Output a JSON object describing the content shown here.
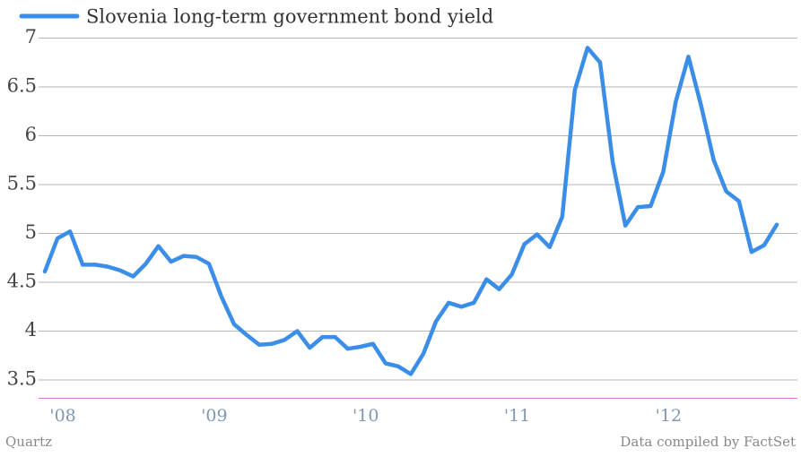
{
  "chart_data": {
    "type": "line",
    "categories": [
      null,
      "'08",
      null,
      null,
      null,
      null,
      null,
      null,
      null,
      null,
      null,
      null,
      null,
      "'09",
      null,
      null,
      null,
      null,
      null,
      null,
      null,
      null,
      null,
      null,
      null,
      "'10",
      null,
      null,
      null,
      null,
      null,
      null,
      null,
      null,
      null,
      null,
      null,
      "'11",
      null,
      null,
      null,
      null,
      null,
      null,
      null,
      null,
      null,
      null,
      null,
      "'12",
      null,
      null,
      null,
      null,
      null,
      null,
      null,
      null,
      null
    ],
    "series": [
      {
        "name": "Slovenia long-term government bond yield",
        "color": "#3b8ee8",
        "values": [
          4.61,
          4.95,
          5.02,
          4.68,
          4.68,
          4.66,
          4.62,
          4.56,
          4.69,
          4.87,
          4.71,
          4.77,
          4.76,
          4.69,
          4.35,
          4.07,
          3.96,
          3.86,
          3.87,
          3.91,
          4.0,
          3.83,
          3.94,
          3.94,
          3.82,
          3.84,
          3.87,
          3.67,
          3.64,
          3.56,
          3.77,
          4.1,
          4.29,
          4.25,
          4.29,
          4.53,
          4.43,
          4.58,
          4.89,
          4.99,
          4.86,
          5.17,
          6.47,
          6.9,
          6.75,
          5.73,
          5.08,
          5.27,
          5.28,
          5.63,
          6.35,
          6.81,
          6.31,
          5.75,
          5.43,
          5.33,
          4.81,
          4.88,
          5.09
        ]
      }
    ],
    "ylim": [
      3.317,
      7.05
    ],
    "yticks": [
      3.5,
      4,
      4.5,
      5,
      5.5,
      6,
      6.5,
      7
    ],
    "grid": true,
    "source": "Data compiled by FactSet",
    "credit": "Quartz"
  }
}
